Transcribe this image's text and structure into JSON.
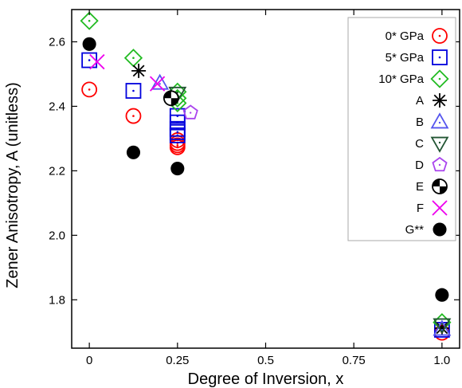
{
  "chart_data": {
    "type": "scatter",
    "title": "",
    "xlabel": "Degree of Inversion, x",
    "ylabel": "Zener Anisotropy, A (unitless)",
    "xlim": [
      -0.05,
      1.05
    ],
    "ylim": [
      1.65,
      2.7
    ],
    "x_ticks": [
      {
        "value": 0,
        "label": "0"
      },
      {
        "value": 0.25,
        "label": "0.25"
      },
      {
        "value": 0.5,
        "label": "0.5"
      },
      {
        "value": 0.75,
        "label": "0.75"
      },
      {
        "value": 1.0,
        "label": "1.0"
      }
    ],
    "y_ticks": [
      {
        "value": 1.8,
        "label": "1.8"
      },
      {
        "value": 2.0,
        "label": "2.0"
      },
      {
        "value": 2.2,
        "label": "2.2"
      },
      {
        "value": 2.4,
        "label": "2.4"
      },
      {
        "value": 2.6,
        "label": "2.6"
      }
    ],
    "grid": false,
    "legend_position": "top-right",
    "series": [
      {
        "name": "0* GPa",
        "marker": "circle-dot",
        "color": "#ff0000",
        "points": [
          [
            0,
            2.452
          ],
          [
            0.125,
            2.37
          ],
          [
            0.25,
            2.295
          ],
          [
            0.25,
            2.286
          ],
          [
            0.25,
            2.279
          ],
          [
            0.25,
            2.273
          ],
          [
            1.0,
            1.698
          ]
        ]
      },
      {
        "name": "5* GPa",
        "marker": "square-dot",
        "color": "#0000dd",
        "points": [
          [
            0,
            2.543
          ],
          [
            0.125,
            2.448
          ],
          [
            0.25,
            2.37
          ],
          [
            0.25,
            2.35
          ],
          [
            0.25,
            2.33
          ],
          [
            0.25,
            2.32
          ],
          [
            0.25,
            2.31
          ],
          [
            1.0,
            1.707
          ]
        ]
      },
      {
        "name": "10* GPa",
        "marker": "diamond-dot",
        "color": "#22bb22",
        "points": [
          [
            0,
            2.665
          ],
          [
            0.125,
            2.55
          ],
          [
            0.25,
            2.445
          ],
          [
            0.25,
            2.425
          ],
          [
            0.25,
            2.41
          ],
          [
            1.0,
            1.73
          ]
        ]
      },
      {
        "name": "A",
        "marker": "asterisk",
        "color": "#000000",
        "points": [
          [
            0.14,
            2.51
          ],
          [
            1.0,
            1.712
          ]
        ]
      },
      {
        "name": "B",
        "marker": "triangle-up",
        "color": "#5555ee",
        "points": [
          [
            0.2,
            2.472
          ],
          [
            1.0,
            1.709
          ]
        ]
      },
      {
        "name": "C",
        "marker": "triangle-down",
        "color": "#225533",
        "points": [
          [
            0.25,
            2.44
          ],
          [
            1.0,
            1.722
          ]
        ]
      },
      {
        "name": "D",
        "marker": "pentagon",
        "color": "#aa44ee",
        "points": [
          [
            0.287,
            2.38
          ]
        ]
      },
      {
        "name": "E",
        "marker": "quartered-circle",
        "color": "#000000",
        "points": [
          [
            0.232,
            2.425
          ]
        ]
      },
      {
        "name": "F",
        "marker": "x",
        "color": "#ee00ee",
        "points": [
          [
            0.022,
            2.538
          ],
          [
            0.193,
            2.47
          ]
        ]
      },
      {
        "name": "G**",
        "marker": "filled-circle",
        "color": "#000000",
        "points": [
          [
            0,
            2.593
          ],
          [
            0.125,
            2.257
          ],
          [
            0.25,
            2.207
          ],
          [
            1.0,
            1.815
          ]
        ]
      }
    ]
  }
}
